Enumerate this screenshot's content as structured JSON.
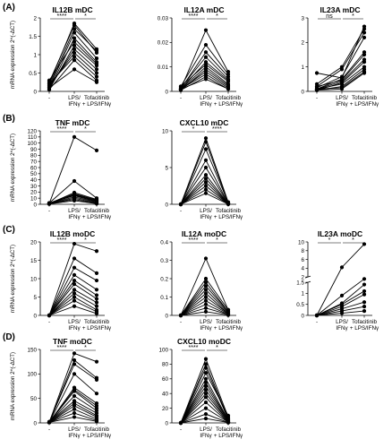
{
  "figure": {
    "panel_labels": [
      "(A)",
      "(B)",
      "(C)",
      "(D)"
    ],
    "y_axis_label": "mRNA expression 2^(-ΔCT)",
    "x_tick_labels": [
      "-",
      "LPS/\nIFNγ",
      "Tofacitinib\n+ LPS/IFNγ"
    ]
  },
  "chart_data": [
    {
      "type": "line",
      "panel": "(A)",
      "title": "IL12B mDC",
      "ylim": [
        0,
        2.0
      ],
      "yticks": [
        0,
        0.5,
        1.0,
        1.5,
        2.0
      ],
      "categories": [
        "-",
        "LPS/IFNγ",
        "Tofacitinib + LPS/IFNγ"
      ],
      "sig": [
        {
          "from": 0,
          "to": 1,
          "label": "****"
        },
        {
          "from": 1,
          "to": 2,
          "label": "*"
        }
      ],
      "series": [
        {
          "values": [
            0.2,
            1.85,
            1.15
          ]
        },
        {
          "values": [
            0.25,
            1.8,
            1.05
          ]
        },
        {
          "values": [
            0.15,
            1.7,
            1.1
          ]
        },
        {
          "values": [
            0.1,
            1.6,
            0.9
          ]
        },
        {
          "values": [
            0.05,
            1.45,
            0.8
          ]
        },
        {
          "values": [
            0.3,
            1.35,
            0.75
          ]
        },
        {
          "values": [
            0.05,
            1.25,
            0.7
          ]
        },
        {
          "values": [
            0.1,
            1.15,
            0.6
          ]
        },
        {
          "values": [
            0.15,
            1.05,
            0.5
          ]
        },
        {
          "values": [
            0.2,
            0.95,
            0.4
          ]
        },
        {
          "values": [
            0.05,
            0.85,
            0.3
          ]
        },
        {
          "values": [
            0.1,
            0.6,
            0.25
          ]
        }
      ]
    },
    {
      "type": "line",
      "panel": "(A)",
      "title": "IL12A mDC",
      "ylim": [
        0,
        0.03
      ],
      "yticks": [
        0,
        0.01,
        0.02,
        0.03
      ],
      "categories": [
        "-",
        "LPS/IFNγ",
        "Tofacitinib + LPS/IFNγ"
      ],
      "sig": [
        {
          "from": 0,
          "to": 1,
          "label": "****"
        },
        {
          "from": 1,
          "to": 2,
          "label": "*"
        }
      ],
      "series": [
        {
          "values": [
            0.001,
            0.025,
            0.008
          ]
        },
        {
          "values": [
            0.002,
            0.019,
            0.007
          ]
        },
        {
          "values": [
            0.001,
            0.016,
            0.006
          ]
        },
        {
          "values": [
            0.0015,
            0.014,
            0.005
          ]
        },
        {
          "values": [
            0.001,
            0.012,
            0.0045
          ]
        },
        {
          "values": [
            0.002,
            0.011,
            0.004
          ]
        },
        {
          "values": [
            0.001,
            0.01,
            0.003
          ]
        },
        {
          "values": [
            0.0005,
            0.009,
            0.0025
          ]
        },
        {
          "values": [
            0.001,
            0.008,
            0.002
          ]
        },
        {
          "values": [
            0.001,
            0.007,
            0.0015
          ]
        },
        {
          "values": [
            0.0005,
            0.006,
            0.001
          ]
        },
        {
          "values": [
            0.001,
            0.005,
            0.001
          ]
        }
      ]
    },
    {
      "type": "line",
      "panel": "(A)",
      "title": "IL23A mDC",
      "ylim": [
        0,
        3
      ],
      "yticks": [
        0,
        1,
        2,
        3
      ],
      "categories": [
        "-",
        "LPS/IFNγ",
        "Tofacitinib + LPS/IFNγ"
      ],
      "sig": [
        {
          "from": 0,
          "to": 1,
          "label": "ns"
        },
        {
          "from": 1,
          "to": 2,
          "label": "*"
        }
      ],
      "series": [
        {
          "values": [
            0.75,
            0.55,
            2.65
          ]
        },
        {
          "values": [
            0.3,
            1.0,
            2.55
          ]
        },
        {
          "values": [
            0.2,
            0.9,
            2.4
          ]
        },
        {
          "values": [
            0.15,
            0.6,
            2.2
          ]
        },
        {
          "values": [
            0.1,
            0.5,
            1.6
          ]
        },
        {
          "values": [
            0.2,
            0.45,
            1.5
          ]
        },
        {
          "values": [
            0.1,
            0.4,
            1.3
          ]
        },
        {
          "values": [
            0.05,
            0.35,
            1.2
          ]
        },
        {
          "values": [
            0.1,
            0.3,
            1.0
          ]
        },
        {
          "values": [
            0.05,
            0.2,
            0.9
          ]
        },
        {
          "values": [
            0.1,
            0.15,
            0.8
          ]
        },
        {
          "values": [
            0.05,
            0.1,
            0.75
          ]
        }
      ]
    },
    {
      "type": "line",
      "panel": "(B)",
      "title": "TNF mDC",
      "ylim": [
        0,
        120
      ],
      "yticks": [
        0,
        10,
        20,
        30,
        40,
        50,
        60,
        70,
        80,
        90,
        100,
        110,
        120
      ],
      "categories": [
        "-",
        "LPS/IFNγ",
        "Tofacitinib + LPS/IFNγ"
      ],
      "sig": [
        {
          "from": 0,
          "to": 1,
          "label": "****"
        },
        {
          "from": 1,
          "to": 2,
          "label": "*"
        }
      ],
      "series": [
        {
          "values": [
            1,
            110,
            88
          ]
        },
        {
          "values": [
            2,
            38,
            10
          ]
        },
        {
          "values": [
            1,
            19,
            8
          ]
        },
        {
          "values": [
            2,
            17,
            7
          ]
        },
        {
          "values": [
            1,
            16,
            6
          ]
        },
        {
          "values": [
            1,
            15,
            5
          ]
        },
        {
          "values": [
            2,
            14,
            4
          ]
        },
        {
          "values": [
            1,
            12,
            3
          ]
        },
        {
          "values": [
            0.5,
            10,
            2
          ]
        },
        {
          "values": [
            1,
            8,
            1
          ]
        },
        {
          "values": [
            0.5,
            6,
            1
          ]
        }
      ]
    },
    {
      "type": "line",
      "panel": "(B)",
      "title": "CXCL10 mDC",
      "ylim": [
        0,
        10
      ],
      "yticks": [
        0,
        5,
        10
      ],
      "categories": [
        "-",
        "LPS/IFNγ",
        "Tofacitinib + LPS/IFNγ"
      ],
      "sig": [
        {
          "from": 0,
          "to": 1,
          "label": "*"
        },
        {
          "from": 1,
          "to": 2,
          "label": "****"
        }
      ],
      "series": [
        {
          "values": [
            0,
            9.0,
            0.3
          ]
        },
        {
          "values": [
            0,
            8.5,
            0.2
          ]
        },
        {
          "values": [
            0,
            7.5,
            0.2
          ]
        },
        {
          "values": [
            0,
            6.0,
            0.1
          ]
        },
        {
          "values": [
            0,
            5.0,
            0.1
          ]
        },
        {
          "values": [
            0,
            4.0,
            0.1
          ]
        },
        {
          "values": [
            0,
            3.5,
            0.05
          ]
        },
        {
          "values": [
            0,
            3.0,
            0.05
          ]
        },
        {
          "values": [
            0,
            2.5,
            0.05
          ]
        },
        {
          "values": [
            0,
            2.0,
            0.02
          ]
        },
        {
          "values": [
            0,
            1.5,
            0.02
          ]
        }
      ]
    },
    {
      "type": "line",
      "panel": "(C)",
      "title": "IL12B moDC",
      "ylim": [
        0,
        20
      ],
      "yticks": [
        0,
        5,
        10,
        15,
        20
      ],
      "categories": [
        "-",
        "LPS/IFNγ",
        "Tofacitinib + LPS/IFNγ"
      ],
      "sig": [
        {
          "from": 0,
          "to": 1,
          "label": "****"
        },
        {
          "from": 1,
          "to": 2,
          "label": "*"
        }
      ],
      "series": [
        {
          "values": [
            0,
            19.5,
            17.5
          ]
        },
        {
          "values": [
            0,
            15.5,
            11.5
          ]
        },
        {
          "values": [
            0,
            13.0,
            9.5
          ]
        },
        {
          "values": [
            0,
            11.0,
            7.0
          ]
        },
        {
          "values": [
            0,
            9.5,
            5.5
          ]
        },
        {
          "values": [
            0,
            8.5,
            4.5
          ]
        },
        {
          "values": [
            0,
            7.0,
            3.5
          ]
        },
        {
          "values": [
            0,
            6.0,
            2.5
          ]
        },
        {
          "values": [
            0,
            5.0,
            1.5
          ]
        },
        {
          "values": [
            0,
            4.0,
            1.0
          ]
        },
        {
          "values": [
            0,
            2.5,
            0.5
          ]
        }
      ]
    },
    {
      "type": "line",
      "panel": "(C)",
      "title": "IL12A moDC",
      "ylim": [
        0,
        0.4
      ],
      "yticks": [
        0,
        0.1,
        0.2,
        0.3,
        0.4
      ],
      "categories": [
        "-",
        "LPS/IFNγ",
        "Tofacitinib + LPS/IFNγ"
      ],
      "sig": [
        {
          "from": 0,
          "to": 1,
          "label": "****"
        },
        {
          "from": 1,
          "to": 2,
          "label": "*"
        }
      ],
      "series": [
        {
          "values": [
            0,
            0.31,
            0.03
          ]
        },
        {
          "values": [
            0,
            0.2,
            0.03
          ]
        },
        {
          "values": [
            0,
            0.18,
            0.02
          ]
        },
        {
          "values": [
            0,
            0.16,
            0.02
          ]
        },
        {
          "values": [
            0,
            0.14,
            0.015
          ]
        },
        {
          "values": [
            0,
            0.12,
            0.01
          ]
        },
        {
          "values": [
            0,
            0.1,
            0.01
          ]
        },
        {
          "values": [
            0,
            0.08,
            0.008
          ]
        },
        {
          "values": [
            0,
            0.06,
            0.005
          ]
        },
        {
          "values": [
            0,
            0.04,
            0.005
          ]
        },
        {
          "values": [
            0,
            0.02,
            0.002
          ]
        }
      ]
    },
    {
      "type": "line",
      "panel": "(C)",
      "title": "IL23A moDC",
      "ylim": [
        0,
        10
      ],
      "yticks": [
        0,
        0.5,
        1,
        1.5,
        2,
        4,
        6,
        8,
        10
      ],
      "axis_break": [
        1.5,
        2
      ],
      "categories": [
        "-",
        "LPS/IFNγ",
        "Tofacitinib + LPS/IFNγ"
      ],
      "sig": [
        {
          "from": 0,
          "to": 1,
          "label": "*"
        },
        {
          "from": 1,
          "to": 2,
          "label": "*"
        }
      ],
      "series": [
        {
          "values": [
            0,
            4.2,
            9.5
          ]
        },
        {
          "values": [
            0,
            0.9,
            1.55
          ]
        },
        {
          "values": [
            0,
            0.55,
            1.4
          ]
        },
        {
          "values": [
            0,
            0.5,
            1.1
          ]
        },
        {
          "values": [
            0,
            0.4,
            0.95
          ]
        },
        {
          "values": [
            0,
            0.3,
            0.6
          ]
        },
        {
          "values": [
            0,
            0.2,
            0.4
          ]
        },
        {
          "values": [
            0,
            0.1,
            0.2
          ]
        }
      ]
    },
    {
      "type": "line",
      "panel": "(D)",
      "title": "TNF moDC",
      "ylim": [
        0,
        150
      ],
      "yticks": [
        0,
        50,
        100,
        150
      ],
      "categories": [
        "-",
        "LPS/IFNγ",
        "Tofacitinib + LPS/IFNγ"
      ],
      "sig": [
        {
          "from": 0,
          "to": 1,
          "label": "****"
        },
        {
          "from": 1,
          "to": 2,
          "label": "*"
        }
      ],
      "series": [
        {
          "values": [
            1,
            142,
            125
          ]
        },
        {
          "values": [
            1,
            128,
            92
          ]
        },
        {
          "values": [
            2,
            120,
            88
          ]
        },
        {
          "values": [
            1,
            100,
            60
          ]
        },
        {
          "values": [
            1,
            72,
            40
          ]
        },
        {
          "values": [
            2,
            68,
            35
          ]
        },
        {
          "values": [
            1,
            65,
            30
          ]
        },
        {
          "values": [
            1,
            55,
            25
          ]
        },
        {
          "values": [
            2,
            45,
            20
          ]
        },
        {
          "values": [
            1,
            40,
            15
          ]
        },
        {
          "values": [
            1,
            35,
            12
          ]
        },
        {
          "values": [
            1,
            28,
            8
          ]
        },
        {
          "values": [
            1,
            20,
            5
          ]
        },
        {
          "values": [
            1,
            12,
            3
          ]
        }
      ]
    },
    {
      "type": "line",
      "panel": "(D)",
      "title": "CXCL10 moDC",
      "ylim": [
        0,
        100
      ],
      "yticks": [
        0,
        20,
        40,
        60,
        80,
        100
      ],
      "categories": [
        "-",
        "LPS/IFNγ",
        "Tofacitinib + LPS/IFNγ"
      ],
      "sig": [
        {
          "from": 0,
          "to": 1,
          "label": "****"
        },
        {
          "from": 1,
          "to": 2,
          "label": "*"
        }
      ],
      "series": [
        {
          "values": [
            0,
            87,
            8
          ]
        },
        {
          "values": [
            0,
            80,
            6
          ]
        },
        {
          "values": [
            0,
            75,
            5
          ]
        },
        {
          "values": [
            0,
            68,
            10
          ]
        },
        {
          "values": [
            0,
            60,
            4
          ]
        },
        {
          "values": [
            0,
            55,
            3
          ]
        },
        {
          "values": [
            0,
            50,
            3
          ]
        },
        {
          "values": [
            0,
            45,
            2
          ]
        },
        {
          "values": [
            0,
            40,
            2
          ]
        },
        {
          "values": [
            0,
            35,
            1
          ]
        },
        {
          "values": [
            0,
            28,
            1
          ]
        },
        {
          "values": [
            0,
            20,
            1
          ]
        },
        {
          "values": [
            0,
            12,
            0.5
          ]
        },
        {
          "values": [
            0,
            6,
            0.5
          ]
        }
      ]
    }
  ]
}
